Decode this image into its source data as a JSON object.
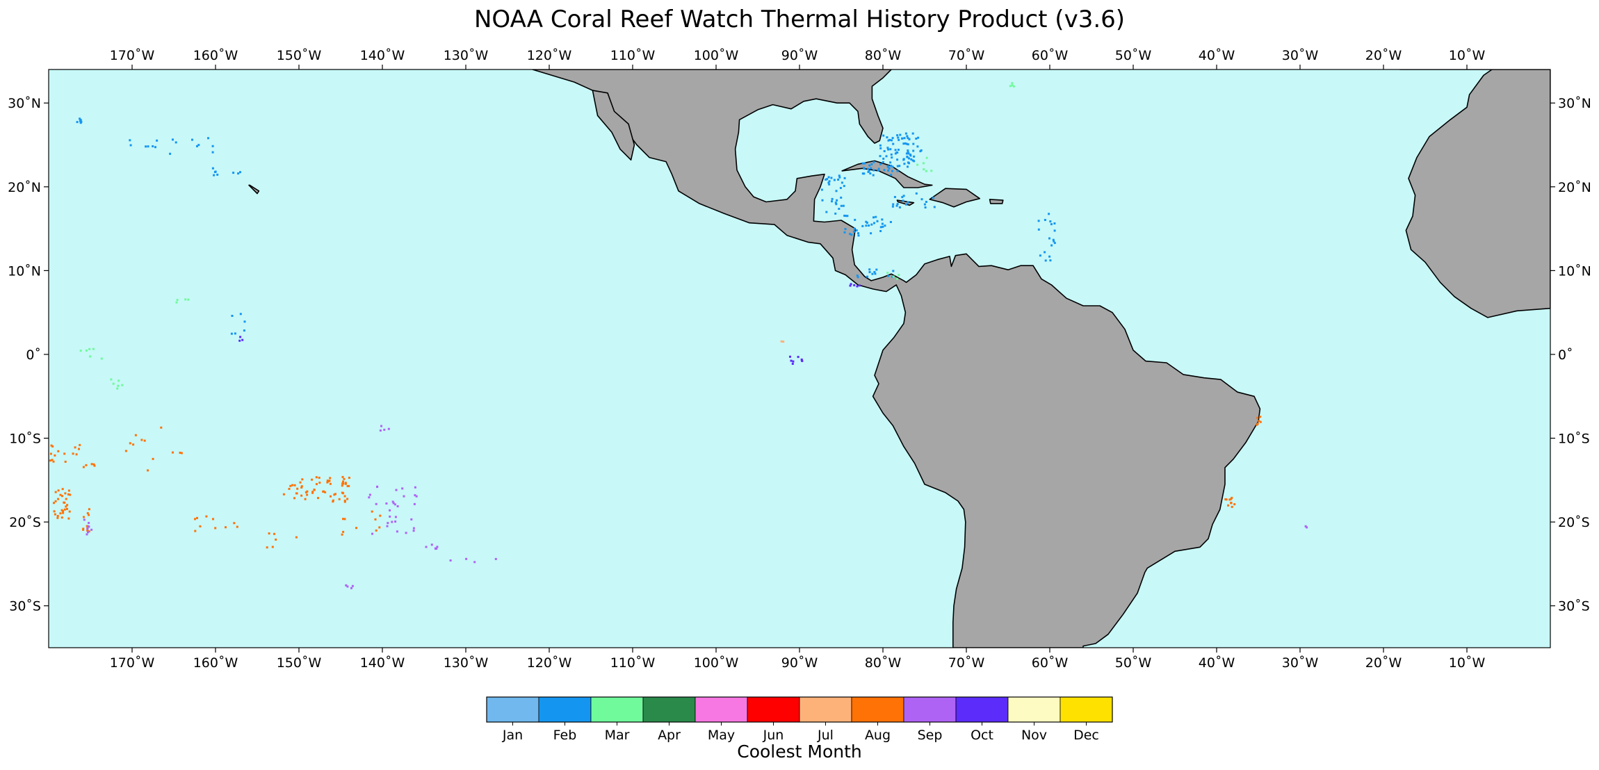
{
  "title": "NOAA Coral Reef Watch Thermal History Product (v3.6)",
  "map": {
    "extent": {
      "lon_min": -180,
      "lon_max": 0,
      "lat_min": -35,
      "lat_max": 34
    },
    "ocean_color": "#c8f8f8",
    "land_color": "#a6a6a6",
    "lon_ticks": [
      {
        "lon": -170,
        "label": "170˚W"
      },
      {
        "lon": -160,
        "label": "160˚W"
      },
      {
        "lon": -150,
        "label": "150˚W"
      },
      {
        "lon": -140,
        "label": "140˚W"
      },
      {
        "lon": -130,
        "label": "130˚W"
      },
      {
        "lon": -120,
        "label": "120˚W"
      },
      {
        "lon": -110,
        "label": "110˚W"
      },
      {
        "lon": -100,
        "label": "100˚W"
      },
      {
        "lon": -90,
        "label": "90˚W"
      },
      {
        "lon": -80,
        "label": "80˚W"
      },
      {
        "lon": -70,
        "label": "70˚W"
      },
      {
        "lon": -60,
        "label": "60˚W"
      },
      {
        "lon": -50,
        "label": "50˚W"
      },
      {
        "lon": -40,
        "label": "40˚W"
      },
      {
        "lon": -30,
        "label": "30˚W"
      },
      {
        "lon": -20,
        "label": "20˚W"
      },
      {
        "lon": -10,
        "label": "10˚W"
      }
    ],
    "lat_ticks": [
      {
        "lat": 30,
        "label": "30˚N"
      },
      {
        "lat": 20,
        "label": "20˚N"
      },
      {
        "lat": 10,
        "label": "10˚N"
      },
      {
        "lat": 0,
        "label": "0˚"
      },
      {
        "lat": -10,
        "label": "10˚S"
      },
      {
        "lat": -20,
        "label": "20˚S"
      },
      {
        "lat": -30,
        "label": "30˚S"
      }
    ],
    "reef_clusters": [
      {
        "month": "Feb",
        "lon": -78,
        "lat": 24.5,
        "spread_lon": 2.5,
        "spread_lat": 2,
        "count": 70
      },
      {
        "month": "Feb",
        "lon": -80.5,
        "lat": 22.3,
        "spread_lon": 2.5,
        "spread_lat": 0.8,
        "count": 30
      },
      {
        "month": "Feb",
        "lon": -86,
        "lat": 19,
        "spread_lon": 1.5,
        "spread_lat": 2.5,
        "count": 30
      },
      {
        "month": "Feb",
        "lon": -82,
        "lat": 15.5,
        "spread_lon": 3,
        "spread_lat": 1.2,
        "count": 30
      },
      {
        "month": "Feb",
        "lon": -60.5,
        "lat": 14,
        "spread_lon": 1,
        "spread_lat": 3,
        "count": 18
      },
      {
        "month": "Feb",
        "lon": -76,
        "lat": 18.5,
        "spread_lon": 3,
        "spread_lat": 1,
        "count": 18
      },
      {
        "month": "Feb",
        "lon": -81,
        "lat": 9.8,
        "spread_lon": 2.5,
        "spread_lat": 0.5,
        "count": 12
      },
      {
        "month": "Feb",
        "lon": -166,
        "lat": 25,
        "spread_lon": 6,
        "spread_lat": 1,
        "count": 16
      },
      {
        "month": "Feb",
        "lon": -159,
        "lat": 22,
        "spread_lon": 2,
        "spread_lat": 0.5,
        "count": 8
      },
      {
        "month": "Feb",
        "lon": -177,
        "lat": 28,
        "spread_lon": 1.5,
        "spread_lat": 0.3,
        "count": 6
      },
      {
        "month": "Feb",
        "lon": -158,
        "lat": 4,
        "spread_lon": 1.5,
        "spread_lat": 1.5,
        "count": 6
      },
      {
        "month": "Mar",
        "lon": -75,
        "lat": 23,
        "spread_lon": 1,
        "spread_lat": 1,
        "count": 6
      },
      {
        "month": "Mar",
        "lon": -64.5,
        "lat": 32.3,
        "spread_lon": 0.4,
        "spread_lat": 0.2,
        "count": 4
      },
      {
        "month": "Mar",
        "lon": -175,
        "lat": 0,
        "spread_lon": 1.5,
        "spread_lat": 1,
        "count": 6
      },
      {
        "month": "Mar",
        "lon": -172,
        "lat": -3,
        "spread_lon": 1,
        "spread_lat": 1,
        "count": 6
      },
      {
        "month": "Mar",
        "lon": -164,
        "lat": 6,
        "spread_lon": 1,
        "spread_lat": 1,
        "count": 4
      },
      {
        "month": "Mar",
        "lon": -79,
        "lat": 9.5,
        "spread_lon": 1,
        "spread_lat": 0.5,
        "count": 4
      },
      {
        "month": "Aug",
        "lon": -148,
        "lat": -16,
        "spread_lon": 4,
        "spread_lat": 1.5,
        "count": 60
      },
      {
        "month": "Aug",
        "lon": -178.5,
        "lat": -17.5,
        "spread_lon": 1,
        "spread_lat": 2,
        "count": 30
      },
      {
        "month": "Aug",
        "lon": -177,
        "lat": -12,
        "spread_lon": 3,
        "spread_lat": 1.5,
        "count": 20
      },
      {
        "month": "Aug",
        "lon": -175.5,
        "lat": -19.5,
        "spread_lon": 0.5,
        "spread_lat": 1.5,
        "count": 10
      },
      {
        "month": "Aug",
        "lon": -160,
        "lat": -20,
        "spread_lon": 3,
        "spread_lat": 1,
        "count": 10
      },
      {
        "month": "Aug",
        "lon": -168,
        "lat": -11,
        "spread_lon": 4,
        "spread_lat": 3,
        "count": 12
      },
      {
        "month": "Aug",
        "lon": -143,
        "lat": -20,
        "spread_lon": 3,
        "spread_lat": 1.5,
        "count": 10
      },
      {
        "month": "Aug",
        "lon": -38.5,
        "lat": -17.5,
        "spread_lon": 0.6,
        "spread_lat": 0.6,
        "count": 10
      },
      {
        "month": "Aug",
        "lon": -35,
        "lat": -7.5,
        "spread_lon": 0.3,
        "spread_lat": 1,
        "count": 6
      },
      {
        "month": "Aug",
        "lon": -152,
        "lat": -22,
        "spread_lon": 2,
        "spread_lat": 1,
        "count": 6
      },
      {
        "month": "Sep",
        "lon": -139,
        "lat": -18.5,
        "spread_lon": 3,
        "spread_lat": 3,
        "count": 30
      },
      {
        "month": "Sep",
        "lon": -134,
        "lat": -23,
        "spread_lon": 1,
        "spread_lat": 0.5,
        "count": 6
      },
      {
        "month": "Sep",
        "lon": -144,
        "lat": -27.5,
        "spread_lon": 0.5,
        "spread_lat": 0.3,
        "count": 4
      },
      {
        "month": "Sep",
        "lon": -129,
        "lat": -24.5,
        "spread_lon": 3,
        "spread_lat": 0.3,
        "count": 4
      },
      {
        "month": "Sep",
        "lon": -175.5,
        "lat": -20.5,
        "spread_lon": 0.6,
        "spread_lat": 1,
        "count": 8
      },
      {
        "month": "Sep",
        "lon": -140,
        "lat": -9,
        "spread_lon": 1,
        "spread_lat": 1,
        "count": 4
      },
      {
        "month": "Sep",
        "lon": -29.5,
        "lat": -20.5,
        "spread_lon": 0.3,
        "spread_lat": 0.2,
        "count": 2
      },
      {
        "month": "Oct",
        "lon": -90.5,
        "lat": -0.5,
        "spread_lon": 0.8,
        "spread_lat": 0.5,
        "count": 8
      },
      {
        "month": "Oct",
        "lon": -83.5,
        "lat": 8.3,
        "spread_lon": 0.7,
        "spread_lat": 0.3,
        "count": 5
      },
      {
        "month": "Oct",
        "lon": -157,
        "lat": 2,
        "spread_lon": 0.3,
        "spread_lat": 0.3,
        "count": 3
      },
      {
        "month": "Jul",
        "lon": -92,
        "lat": 1.5,
        "spread_lon": 0.3,
        "spread_lat": 0.2,
        "count": 2
      }
    ],
    "land_outlines": [
      [
        [
          -122,
          34
        ],
        [
          -117,
          32.5
        ],
        [
          -114.8,
          31.5
        ],
        [
          -112.5,
          29
        ],
        [
          -111,
          27
        ],
        [
          -109.5,
          25
        ],
        [
          -108,
          23.5
        ],
        [
          -106,
          23
        ],
        [
          -105.3,
          21.5
        ],
        [
          -104.5,
          19.5
        ],
        [
          -102,
          18
        ],
        [
          -99,
          16.8
        ],
        [
          -96,
          15.7
        ],
        [
          -93,
          15.5
        ],
        [
          -91.5,
          14.2
        ],
        [
          -89,
          13.4
        ],
        [
          -87.5,
          13.2
        ],
        [
          -86,
          11.5
        ],
        [
          -85.7,
          10
        ],
        [
          -84.5,
          9.5
        ],
        [
          -83,
          8.3
        ],
        [
          -81.2,
          7.8
        ],
        [
          -79.6,
          7.5
        ],
        [
          -78.4,
          8.3
        ],
        [
          -77.8,
          7
        ],
        [
          -77.3,
          5
        ],
        [
          -77.5,
          3.7
        ],
        [
          -78.7,
          2
        ],
        [
          -80,
          0.5
        ],
        [
          -80.5,
          -1
        ],
        [
          -81,
          -2.5
        ],
        [
          -80.5,
          -3.5
        ],
        [
          -81.2,
          -5
        ],
        [
          -80,
          -7
        ],
        [
          -78.8,
          -8.5
        ],
        [
          -77.5,
          -11
        ],
        [
          -76.2,
          -13
        ],
        [
          -75,
          -15.5
        ],
        [
          -72.5,
          -16.5
        ],
        [
          -71,
          -17.5
        ],
        [
          -70.3,
          -18.5
        ],
        [
          -70.1,
          -20
        ],
        [
          -70.2,
          -23
        ],
        [
          -70.5,
          -25.5
        ],
        [
          -71.2,
          -28
        ],
        [
          -71.5,
          -30
        ],
        [
          -71.6,
          -32
        ],
        [
          -71.6,
          -35
        ],
        [
          -56,
          -35
        ],
        [
          -56,
          -34.8
        ],
        [
          -54.5,
          -34.5
        ],
        [
          -53,
          -33.4
        ],
        [
          -51.2,
          -31
        ],
        [
          -49.5,
          -28.5
        ],
        [
          -48.6,
          -26
        ],
        [
          -48.3,
          -25.5
        ],
        [
          -45,
          -23.5
        ],
        [
          -42,
          -23
        ],
        [
          -41,
          -22
        ],
        [
          -40.5,
          -20.3
        ],
        [
          -39.6,
          -18.5
        ],
        [
          -39,
          -15.5
        ],
        [
          -39,
          -13.5
        ],
        [
          -38,
          -12.5
        ],
        [
          -36.5,
          -10.5
        ],
        [
          -35,
          -8
        ],
        [
          -34.8,
          -6.5
        ],
        [
          -35.5,
          -5
        ],
        [
          -37.5,
          -4.5
        ],
        [
          -39.5,
          -3
        ],
        [
          -41.5,
          -2.8
        ],
        [
          -44,
          -2.4
        ],
        [
          -46,
          -1
        ],
        [
          -48.5,
          -0.8
        ],
        [
          -50,
          0.5
        ],
        [
          -51,
          3
        ],
        [
          -52.5,
          5
        ],
        [
          -54,
          5.8
        ],
        [
          -56,
          5.8
        ],
        [
          -58,
          6.7
        ],
        [
          -59.8,
          8.3
        ],
        [
          -61,
          9
        ],
        [
          -62,
          10.6
        ],
        [
          -63.5,
          10.6
        ],
        [
          -65,
          10.1
        ],
        [
          -67,
          10.6
        ],
        [
          -68.5,
          10.5
        ],
        [
          -70,
          12
        ],
        [
          -71.3,
          11.8
        ],
        [
          -71.8,
          10.5
        ],
        [
          -72,
          11.7
        ],
        [
          -73.5,
          11.3
        ],
        [
          -75,
          10.8
        ],
        [
          -76,
          9.5
        ],
        [
          -77.2,
          8.6
        ],
        [
          -77.5,
          8.8
        ],
        [
          -79,
          9.6
        ],
        [
          -80,
          9.2
        ],
        [
          -81.4,
          8.8
        ],
        [
          -82.2,
          9.3
        ],
        [
          -83.4,
          10.7
        ],
        [
          -83.7,
          12.5
        ],
        [
          -83.3,
          15
        ],
        [
          -85,
          16
        ],
        [
          -87,
          15.8
        ],
        [
          -88.3,
          15.9
        ],
        [
          -88.2,
          18.5
        ],
        [
          -87.5,
          20
        ],
        [
          -87,
          21.5
        ],
        [
          -88.5,
          21.3
        ],
        [
          -90.3,
          21
        ],
        [
          -90.5,
          19.5
        ],
        [
          -91.5,
          18.5
        ],
        [
          -94,
          18.2
        ],
        [
          -95.5,
          18.8
        ],
        [
          -96.5,
          20
        ],
        [
          -97.5,
          22
        ],
        [
          -97.7,
          24.5
        ],
        [
          -97.3,
          26.5
        ],
        [
          -97.2,
          28
        ],
        [
          -95,
          29.2
        ],
        [
          -93.2,
          29.8
        ],
        [
          -91,
          29.3
        ],
        [
          -89.5,
          30.2
        ],
        [
          -88,
          30.5
        ],
        [
          -85.5,
          30
        ],
        [
          -84,
          30
        ],
        [
          -83,
          29
        ],
        [
          -82.8,
          27.5
        ],
        [
          -81.8,
          26
        ],
        [
          -81,
          25.2
        ],
        [
          -80.4,
          25.5
        ],
        [
          -80,
          27
        ],
        [
          -80.6,
          28.5
        ],
        [
          -81.3,
          30.5
        ],
        [
          -81.3,
          32
        ],
        [
          -80,
          33
        ],
        [
          -79,
          34
        ],
        [
          -122,
          34
        ]
      ],
      [
        [
          -114.8,
          31.5
        ],
        [
          -113,
          31.2
        ],
        [
          -112.2,
          29
        ],
        [
          -110.5,
          27.5
        ],
        [
          -109.8,
          25
        ],
        [
          -110.2,
          23.2
        ],
        [
          -111.5,
          24.5
        ],
        [
          -112.5,
          26.5
        ],
        [
          -114.2,
          28.5
        ],
        [
          -114.8,
          31.5
        ]
      ],
      [
        [
          -84.9,
          21.9
        ],
        [
          -83,
          22.7
        ],
        [
          -81,
          23.1
        ],
        [
          -79,
          22.5
        ],
        [
          -77,
          21.2
        ],
        [
          -75,
          20.3
        ],
        [
          -74.1,
          20.2
        ],
        [
          -75.8,
          19.9
        ],
        [
          -77.5,
          19.9
        ],
        [
          -78.5,
          21
        ],
        [
          -80.5,
          21.9
        ],
        [
          -82.5,
          22.2
        ],
        [
          -84.9,
          21.9
        ]
      ],
      [
        [
          -74.4,
          18.5
        ],
        [
          -72.5,
          19.8
        ],
        [
          -70,
          19.7
        ],
        [
          -68.4,
          18.6
        ],
        [
          -70,
          18.2
        ],
        [
          -71.5,
          17.6
        ],
        [
          -72.8,
          18.1
        ],
        [
          -74.4,
          18.5
        ]
      ],
      [
        [
          -78.3,
          18.4
        ],
        [
          -76.3,
          18.1
        ],
        [
          -76.8,
          17.8
        ],
        [
          -78.2,
          18.2
        ],
        [
          -78.3,
          18.4
        ]
      ],
      [
        [
          -67.2,
          18.5
        ],
        [
          -65.6,
          18.4
        ],
        [
          -65.7,
          18
        ],
        [
          -67.1,
          18
        ],
        [
          -67.2,
          18.5
        ]
      ],
      [
        [
          -18,
          34
        ],
        [
          0,
          34
        ],
        [
          0,
          5.5
        ],
        [
          -4,
          5.2
        ],
        [
          -7.5,
          4.4
        ],
        [
          -9.5,
          5.5
        ],
        [
          -11.5,
          6.9
        ],
        [
          -13.2,
          8.6
        ],
        [
          -15,
          11
        ],
        [
          -16.7,
          12.5
        ],
        [
          -17.3,
          14.8
        ],
        [
          -16.5,
          16.5
        ],
        [
          -16.2,
          19
        ],
        [
          -17,
          21
        ],
        [
          -16,
          23.5
        ],
        [
          -14.5,
          26
        ],
        [
          -12,
          28
        ],
        [
          -10,
          29.5
        ],
        [
          -9.7,
          31
        ],
        [
          -8,
          33.3
        ],
        [
          -7,
          34
        ]
      ],
      [
        [
          -156,
          20.2
        ],
        [
          -155,
          19.2
        ],
        [
          -154.8,
          19.5
        ],
        [
          -155.9,
          20.2
        ],
        [
          -156,
          20.2
        ]
      ]
    ]
  },
  "legend": {
    "title": "Coolest Month",
    "entries": [
      {
        "label": "Jan",
        "color": "#70b8ee"
      },
      {
        "label": "Feb",
        "color": "#1496f0"
      },
      {
        "label": "Mar",
        "color": "#70fa9b"
      },
      {
        "label": "Apr",
        "color": "#2a8a4a"
      },
      {
        "label": "May",
        "color": "#f778e2"
      },
      {
        "label": "Jun",
        "color": "#ff0000"
      },
      {
        "label": "Jul",
        "color": "#fdb27a"
      },
      {
        "label": "Aug",
        "color": "#ff7206"
      },
      {
        "label": "Sep",
        "color": "#af63f5"
      },
      {
        "label": "Oct",
        "color": "#5b2cfa"
      },
      {
        "label": "Nov",
        "color": "#fdfbc1"
      },
      {
        "label": "Dec",
        "color": "#ffe100"
      }
    ]
  }
}
